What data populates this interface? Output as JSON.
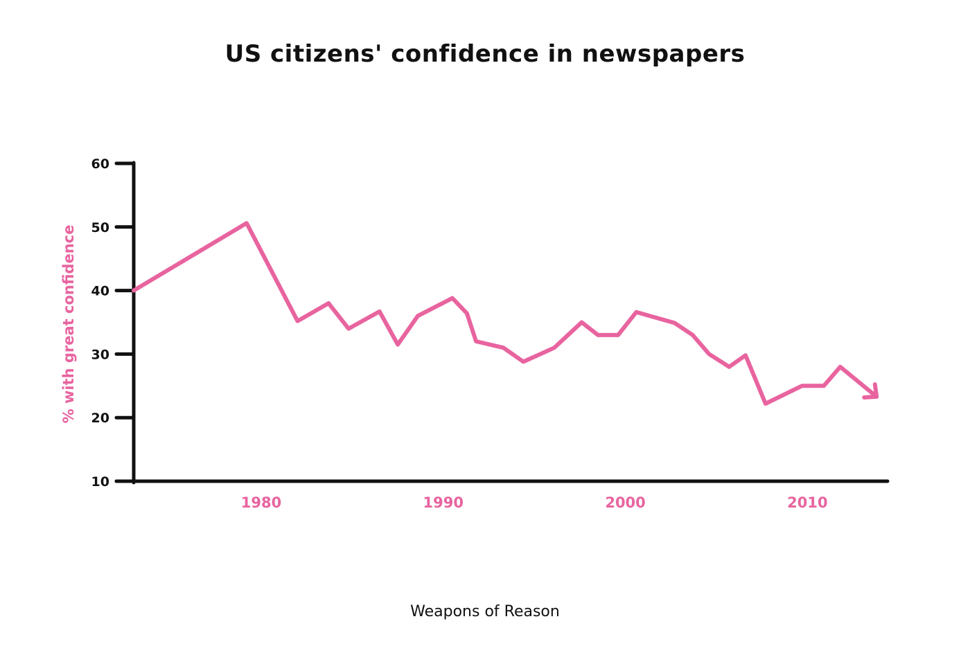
{
  "chart_data": {
    "type": "line",
    "title": "US citizens' confidence in newspapers",
    "xlabel": "",
    "ylabel": "% with great confidence",
    "xlim": [
      1973,
      2014.4
    ],
    "ylim": [
      10,
      60
    ],
    "yticks": [
      10,
      20,
      30,
      40,
      50,
      60
    ],
    "xticks": [
      1980,
      1990,
      2000,
      2010
    ],
    "grid": false,
    "legend": "none",
    "end_marker": "arrow",
    "series": [
      {
        "x": [
          1973,
          1979.2,
          1982,
          1983.7,
          1984.8,
          1986.5,
          1987.5,
          1988.6,
          1990.5,
          1991.3,
          1991.8,
          1993.3,
          1994.4,
          1996.1,
          1997.6,
          1998.5,
          1999.6,
          2000.6,
          2002.7,
          2003.7,
          2004.6,
          2005.7,
          2006.6,
          2007.7,
          2009.7,
          2010.9,
          2011.8,
          2013.8
        ],
        "y": [
          40,
          50.6,
          35.2,
          38,
          34,
          36.7,
          31.5,
          36,
          38.8,
          36.4,
          32,
          31,
          28.8,
          31,
          35,
          33,
          33,
          36.6,
          34.9,
          33,
          30,
          28,
          29.8,
          22.2,
          25,
          25,
          28,
          23.3
        ]
      }
    ],
    "colors": {
      "line": "#e8649f",
      "axis": "#111111",
      "accent_text": "#e8649f"
    }
  },
  "footer": {
    "credit": "Weapons of Reason"
  }
}
